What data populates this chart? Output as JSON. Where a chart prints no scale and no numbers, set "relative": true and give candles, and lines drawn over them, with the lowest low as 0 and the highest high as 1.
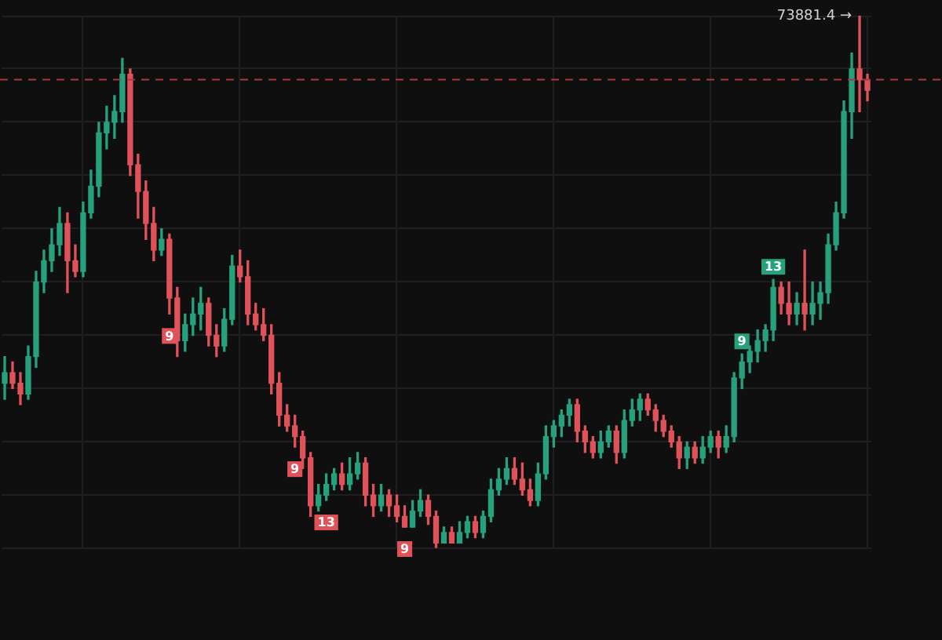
{
  "chart_data": {
    "type": "candlestick",
    "relative": true,
    "grid": true,
    "legend": false,
    "categories": [
      null,
      null,
      null,
      null,
      null,
      null,
      null,
      null,
      null,
      null,
      null,
      null,
      null,
      null,
      null,
      null,
      null,
      null,
      null,
      null,
      null,
      null,
      null,
      null,
      null,
      null,
      null,
      null,
      null,
      null,
      null,
      null,
      null,
      null,
      null,
      null,
      null,
      null,
      null,
      null,
      null,
      null,
      null,
      null,
      null,
      null,
      null,
      null,
      null,
      null,
      null,
      null,
      null,
      null,
      null,
      null,
      null,
      null,
      null,
      null,
      null,
      null,
      null,
      null,
      null,
      null,
      null,
      null,
      null,
      null,
      null,
      null,
      null,
      null,
      null,
      null,
      null,
      null,
      null,
      null,
      null,
      null,
      null,
      null,
      null,
      null,
      null,
      null,
      null,
      null,
      null,
      null,
      null,
      null,
      null,
      null,
      null,
      null,
      null,
      null,
      null,
      null,
      null,
      null,
      null,
      null,
      null,
      null,
      null,
      null,
      null
    ],
    "ohlc": [
      [
        0.31,
        0.36,
        0.28,
        0.33
      ],
      [
        0.33,
        0.35,
        0.3,
        0.31
      ],
      [
        0.31,
        0.33,
        0.27,
        0.29
      ],
      [
        0.29,
        0.38,
        0.28,
        0.36
      ],
      [
        0.36,
        0.52,
        0.34,
        0.5
      ],
      [
        0.5,
        0.56,
        0.48,
        0.54
      ],
      [
        0.54,
        0.6,
        0.52,
        0.57
      ],
      [
        0.57,
        0.64,
        0.55,
        0.61
      ],
      [
        0.61,
        0.63,
        0.48,
        0.54
      ],
      [
        0.54,
        0.57,
        0.51,
        0.52
      ],
      [
        0.52,
        0.65,
        0.51,
        0.63
      ],
      [
        0.63,
        0.71,
        0.62,
        0.68
      ],
      [
        0.68,
        0.8,
        0.66,
        0.78
      ],
      [
        0.78,
        0.83,
        0.75,
        0.8
      ],
      [
        0.8,
        0.85,
        0.77,
        0.82
      ],
      [
        0.82,
        0.92,
        0.8,
        0.89
      ],
      [
        0.89,
        0.9,
        0.7,
        0.72
      ],
      [
        0.72,
        0.74,
        0.62,
        0.67
      ],
      [
        0.67,
        0.69,
        0.58,
        0.61
      ],
      [
        0.61,
        0.64,
        0.54,
        0.56
      ],
      [
        0.56,
        0.6,
        0.55,
        0.58
      ],
      [
        0.58,
        0.59,
        0.44,
        0.47
      ],
      [
        0.47,
        0.49,
        0.36,
        0.39
      ],
      [
        0.39,
        0.44,
        0.37,
        0.42
      ],
      [
        0.42,
        0.47,
        0.4,
        0.44
      ],
      [
        0.44,
        0.49,
        0.41,
        0.46
      ],
      [
        0.46,
        0.47,
        0.38,
        0.4
      ],
      [
        0.4,
        0.42,
        0.36,
        0.38
      ],
      [
        0.38,
        0.45,
        0.37,
        0.43
      ],
      [
        0.43,
        0.55,
        0.42,
        0.53
      ],
      [
        0.53,
        0.56,
        0.5,
        0.51
      ],
      [
        0.51,
        0.54,
        0.42,
        0.44
      ],
      [
        0.44,
        0.46,
        0.41,
        0.42
      ],
      [
        0.42,
        0.45,
        0.39,
        0.4
      ],
      [
        0.4,
        0.42,
        0.29,
        0.31
      ],
      [
        0.31,
        0.33,
        0.23,
        0.25
      ],
      [
        0.25,
        0.27,
        0.22,
        0.23
      ],
      [
        0.23,
        0.25,
        0.19,
        0.21
      ],
      [
        0.21,
        0.22,
        0.15,
        0.17
      ],
      [
        0.17,
        0.18,
        0.06,
        0.08
      ],
      [
        0.08,
        0.12,
        0.07,
        0.1
      ],
      [
        0.1,
        0.14,
        0.09,
        0.12
      ],
      [
        0.12,
        0.15,
        0.11,
        0.14
      ],
      [
        0.14,
        0.16,
        0.11,
        0.12
      ],
      [
        0.12,
        0.17,
        0.11,
        0.14
      ],
      [
        0.14,
        0.18,
        0.13,
        0.16
      ],
      [
        0.16,
        0.17,
        0.08,
        0.1
      ],
      [
        0.1,
        0.12,
        0.06,
        0.08
      ],
      [
        0.08,
        0.12,
        0.07,
        0.1
      ],
      [
        0.1,
        0.11,
        0.06,
        0.08
      ],
      [
        0.08,
        0.1,
        0.05,
        0.06
      ],
      [
        0.06,
        0.08,
        0.04,
        0.04
      ],
      [
        0.04,
        0.09,
        0.04,
        0.07
      ],
      [
        0.07,
        0.11,
        0.06,
        0.09
      ],
      [
        0.09,
        0.1,
        0.045,
        0.06
      ],
      [
        0.06,
        0.07,
        0,
        0.01
      ],
      [
        0.01,
        0.04,
        0.01,
        0.03
      ],
      [
        0.03,
        0.04,
        0.01,
        0.01
      ],
      [
        0.01,
        0.05,
        0.01,
        0.03
      ],
      [
        0.03,
        0.06,
        0.02,
        0.05
      ],
      [
        0.05,
        0.06,
        0.02,
        0.03
      ],
      [
        0.03,
        0.07,
        0.02,
        0.06
      ],
      [
        0.06,
        0.13,
        0.05,
        0.11
      ],
      [
        0.11,
        0.15,
        0.1,
        0.13
      ],
      [
        0.13,
        0.17,
        0.12,
        0.15
      ],
      [
        0.15,
        0.17,
        0.12,
        0.13
      ],
      [
        0.13,
        0.16,
        0.1,
        0.11
      ],
      [
        0.11,
        0.13,
        0.08,
        0.09
      ],
      [
        0.09,
        0.16,
        0.08,
        0.14
      ],
      [
        0.14,
        0.23,
        0.13,
        0.21
      ],
      [
        0.21,
        0.24,
        0.19,
        0.23
      ],
      [
        0.23,
        0.26,
        0.21,
        0.25
      ],
      [
        0.25,
        0.28,
        0.23,
        0.27
      ],
      [
        0.27,
        0.28,
        0.2,
        0.22
      ],
      [
        0.22,
        0.23,
        0.18,
        0.2
      ],
      [
        0.2,
        0.21,
        0.17,
        0.18
      ],
      [
        0.18,
        0.22,
        0.17,
        0.2
      ],
      [
        0.2,
        0.23,
        0.19,
        0.22
      ],
      [
        0.22,
        0.23,
        0.16,
        0.18
      ],
      [
        0.18,
        0.26,
        0.17,
        0.24
      ],
      [
        0.24,
        0.28,
        0.23,
        0.26
      ],
      [
        0.26,
        0.29,
        0.24,
        0.28
      ],
      [
        0.28,
        0.29,
        0.25,
        0.26
      ],
      [
        0.26,
        0.27,
        0.22,
        0.24
      ],
      [
        0.24,
        0.25,
        0.21,
        0.22
      ],
      [
        0.22,
        0.23,
        0.19,
        0.2
      ],
      [
        0.2,
        0.21,
        0.15,
        0.17
      ],
      [
        0.17,
        0.2,
        0.15,
        0.19
      ],
      [
        0.19,
        0.2,
        0.16,
        0.17
      ],
      [
        0.17,
        0.21,
        0.16,
        0.19
      ],
      [
        0.19,
        0.22,
        0.18,
        0.21
      ],
      [
        0.21,
        0.22,
        0.17,
        0.19
      ],
      [
        0.19,
        0.23,
        0.18,
        0.21
      ],
      [
        0.21,
        0.33,
        0.2,
        0.32
      ],
      [
        0.32,
        0.365,
        0.3,
        0.35
      ],
      [
        0.35,
        0.38,
        0.33,
        0.37
      ],
      [
        0.37,
        0.41,
        0.35,
        0.39
      ],
      [
        0.39,
        0.42,
        0.37,
        0.41
      ],
      [
        0.41,
        0.505,
        0.39,
        0.49
      ],
      [
        0.49,
        0.5,
        0.44,
        0.46
      ],
      [
        0.46,
        0.5,
        0.42,
        0.44
      ],
      [
        0.44,
        0.48,
        0.42,
        0.46
      ],
      [
        0.46,
        0.56,
        0.41,
        0.44
      ],
      [
        0.44,
        0.5,
        0.42,
        0.46
      ],
      [
        0.46,
        0.5,
        0.43,
        0.48
      ],
      [
        0.48,
        0.59,
        0.46,
        0.57
      ],
      [
        0.57,
        0.65,
        0.56,
        0.63
      ],
      [
        0.63,
        0.84,
        0.62,
        0.82
      ],
      [
        0.82,
        0.93,
        0.77,
        0.9
      ],
      [
        0.9,
        1,
        0.82,
        0.88
      ],
      [
        0.88,
        0.89,
        0.84,
        0.86
      ]
    ],
    "ref_lines": [
      {
        "axis": "y",
        "value": 0.88,
        "color": "#a83a3a",
        "line_style": "dashed"
      }
    ],
    "annotations": [
      "73881.4 →",
      {
        "text": "9",
        "y": 0.44
      },
      {
        "text": "9",
        "y": 0.19
      },
      {
        "text": "13",
        "y": 0.09
      },
      {
        "text": "9",
        "y": 0.04
      },
      {
        "text": "9",
        "y": 0.365
      },
      {
        "text": "13",
        "y": 0.505
      }
    ]
  }
}
